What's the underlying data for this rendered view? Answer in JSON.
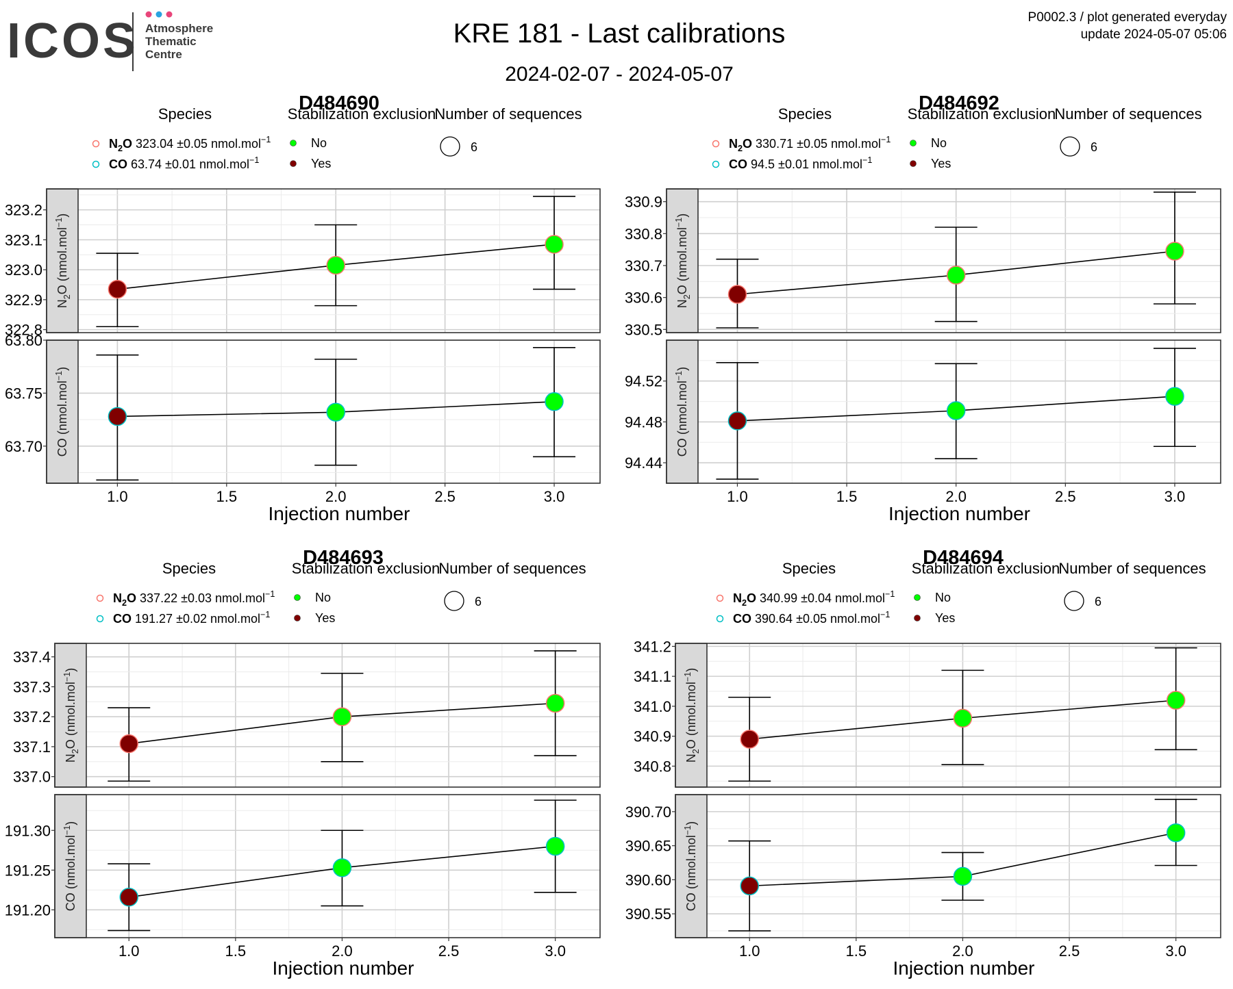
{
  "header": {
    "logo_text": "ICOS",
    "logo_lines": [
      "Atmosphere",
      "Thematic",
      "Centre"
    ],
    "logo_dot_colors": [
      "#e8457a",
      "#2aa3e0",
      "#e8457a"
    ],
    "title": "KRE 181 - Last calibrations",
    "subtitle": "2024-02-07 - 2024-05-07",
    "info_line1": "P0002.3 / plot generated everyday",
    "info_line2": "update  2024-05-07 05:06"
  },
  "legend_labels": {
    "species": "Species",
    "stabilization": "Stabilization exclusion",
    "sequences": "Number of sequences",
    "no": "No",
    "yes": "Yes"
  },
  "colors": {
    "n2o_outline": "#f8766d",
    "co_outline": "#00bfc4",
    "no_fill": "#00ff00",
    "yes_fill": "#800000",
    "strip_bg": "#d9d9d9",
    "grid": "#ebebeb"
  },
  "chart_data": [
    {
      "type": "scatter",
      "title": "D484690",
      "xlabel": "Injection number",
      "xlim": [
        0.82,
        3.21
      ],
      "xticks": [
        "1.0",
        "1.5",
        "2.0",
        "2.5",
        "3.0"
      ],
      "sequences": "6",
      "legend_species": [
        {
          "name": "N2O",
          "value": "323.04",
          "pm": "0.05",
          "unit": "nmol.mol",
          "exp": "−1"
        },
        {
          "name": "CO",
          "value": "63.74",
          "pm": "0.01",
          "unit": "nmol.mol",
          "exp": "−1"
        }
      ],
      "panels": [
        {
          "strip": "N2O (nmol.mol-1)",
          "species": "N2O",
          "ylim": [
            322.79,
            323.27
          ],
          "yticks": [
            "322.8",
            "322.9",
            "323.0",
            "323.1",
            "323.2"
          ],
          "x": [
            1,
            2,
            3
          ],
          "y": [
            322.935,
            323.015,
            323.085
          ],
          "ymin": [
            322.81,
            322.88,
            322.935
          ],
          "ymax": [
            323.055,
            323.15,
            323.245
          ],
          "excluded": [
            true,
            false,
            false
          ]
        },
        {
          "strip": "CO (nmol.mol-1)",
          "species": "CO",
          "ylim": [
            63.665,
            63.8
          ],
          "yticks": [
            "63.70",
            "63.75",
            "63.80"
          ],
          "x": [
            1,
            2,
            3
          ],
          "y": [
            63.728,
            63.732,
            63.742
          ],
          "ymin": [
            63.668,
            63.682,
            63.69
          ],
          "ymax": [
            63.786,
            63.782,
            63.793
          ],
          "excluded": [
            true,
            false,
            false
          ]
        }
      ]
    },
    {
      "type": "scatter",
      "title": "D484692",
      "xlabel": "Injection number",
      "xlim": [
        0.82,
        3.21
      ],
      "xticks": [
        "1.0",
        "1.5",
        "2.0",
        "2.5",
        "3.0"
      ],
      "sequences": "6",
      "legend_species": [
        {
          "name": "N2O",
          "value": "330.71",
          "pm": "0.05",
          "unit": "nmol.mol",
          "exp": "−1"
        },
        {
          "name": "CO",
          "value": "94.5",
          "pm": "0.01",
          "unit": "nmol.mol",
          "exp": "−1"
        }
      ],
      "panels": [
        {
          "strip": "N2O (nmol.mol-1)",
          "species": "N2O",
          "ylim": [
            330.49,
            330.94
          ],
          "yticks": [
            "330.5",
            "330.6",
            "330.7",
            "330.8",
            "330.9"
          ],
          "x": [
            1,
            2,
            3
          ],
          "y": [
            330.61,
            330.67,
            330.745
          ],
          "ymin": [
            330.505,
            330.525,
            330.58
          ],
          "ymax": [
            330.72,
            330.82,
            330.93
          ],
          "excluded": [
            true,
            false,
            false
          ]
        },
        {
          "strip": "CO (nmol.mol-1)",
          "species": "CO",
          "ylim": [
            94.42,
            94.56
          ],
          "yticks": [
            "94.44",
            "94.48",
            "94.52"
          ],
          "x": [
            1,
            2,
            3
          ],
          "y": [
            94.481,
            94.491,
            94.505
          ],
          "ymin": [
            94.424,
            94.444,
            94.456
          ],
          "ymax": [
            94.538,
            94.537,
            94.552
          ],
          "excluded": [
            true,
            false,
            false
          ]
        }
      ]
    },
    {
      "type": "scatter",
      "title": "D484693",
      "xlabel": "Injection number",
      "xlim": [
        0.8,
        3.21
      ],
      "xticks": [
        "1.0",
        "1.5",
        "2.0",
        "2.5",
        "3.0"
      ],
      "sequences": "6",
      "legend_species": [
        {
          "name": "N2O",
          "value": "337.22",
          "pm": "0.03",
          "unit": "nmol.mol",
          "exp": "−1"
        },
        {
          "name": "CO",
          "value": "191.27",
          "pm": "0.02",
          "unit": "nmol.mol",
          "exp": "−1"
        }
      ],
      "panels": [
        {
          "strip": "N2O (nmol.mol-1)",
          "species": "N2O",
          "ylim": [
            336.965,
            337.445
          ],
          "yticks": [
            "337.0",
            "337.1",
            "337.2",
            "337.3",
            "337.4"
          ],
          "x": [
            1,
            2,
            3
          ],
          "y": [
            337.11,
            337.2,
            337.245
          ],
          "ymin": [
            336.985,
            337.05,
            337.07
          ],
          "ymax": [
            337.23,
            337.345,
            337.42
          ],
          "excluded": [
            true,
            false,
            false
          ]
        },
        {
          "strip": "CO (nmol.mol-1)",
          "species": "CO",
          "ylim": [
            191.165,
            191.345
          ],
          "yticks": [
            "191.20",
            "191.25",
            "191.30"
          ],
          "x": [
            1,
            2,
            3
          ],
          "y": [
            191.216,
            191.253,
            191.28
          ],
          "ymin": [
            191.174,
            191.205,
            191.222
          ],
          "ymax": [
            191.258,
            191.3,
            191.338
          ],
          "excluded": [
            true,
            false,
            false
          ]
        }
      ]
    },
    {
      "type": "scatter",
      "title": "D484694",
      "xlabel": "Injection number",
      "xlim": [
        0.8,
        3.21
      ],
      "xticks": [
        "1.0",
        "1.5",
        "2.0",
        "2.5",
        "3.0"
      ],
      "sequences": "6",
      "legend_species": [
        {
          "name": "N2O",
          "value": "340.99",
          "pm": "0.04",
          "unit": "nmol.mol",
          "exp": "−1"
        },
        {
          "name": "CO",
          "value": "390.64",
          "pm": "0.05",
          "unit": "nmol.mol",
          "exp": "−1"
        }
      ],
      "panels": [
        {
          "strip": "N2O (nmol.mol-1)",
          "species": "N2O",
          "ylim": [
            340.73,
            341.21
          ],
          "yticks": [
            "340.8",
            "340.9",
            "341.0",
            "341.1",
            "341.2"
          ],
          "x": [
            1,
            2,
            3
          ],
          "y": [
            340.89,
            340.96,
            341.02
          ],
          "ymin": [
            340.75,
            340.805,
            340.855
          ],
          "ymax": [
            341.03,
            341.12,
            341.195
          ],
          "excluded": [
            true,
            false,
            false
          ]
        },
        {
          "strip": "CO (nmol.mol-1)",
          "species": "CO",
          "ylim": [
            390.515,
            390.725
          ],
          "yticks": [
            "390.55",
            "390.60",
            "390.65",
            "390.70"
          ],
          "x": [
            1,
            2,
            3
          ],
          "y": [
            390.591,
            390.605,
            390.669
          ],
          "ymin": [
            390.525,
            390.57,
            390.621
          ],
          "ymax": [
            390.657,
            390.64,
            390.718
          ],
          "excluded": [
            true,
            false,
            false
          ]
        }
      ]
    }
  ]
}
